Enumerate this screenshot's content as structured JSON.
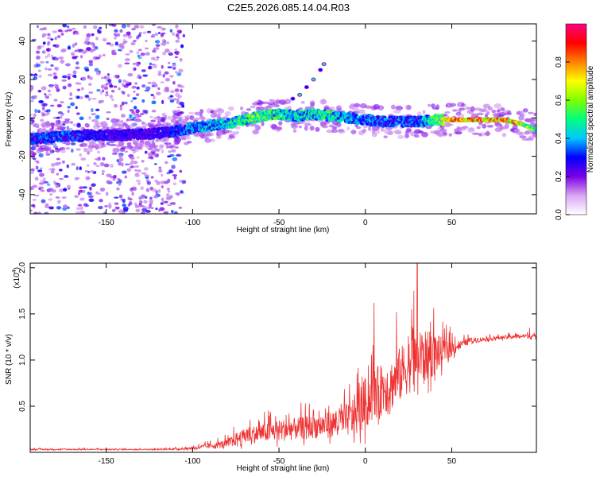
{
  "title": "C2E5.2026.085.14.04.R03",
  "chart_data": [
    {
      "type": "heatmap",
      "title": "C2E5.2026.085.14.04.R03",
      "xlabel": "Height of straight line (km)",
      "ylabel": "Frequency (Hz)",
      "xlim": [
        -194,
        99
      ],
      "ylim": [
        -50,
        49
      ],
      "x_ticks": [
        -150,
        -100,
        -50,
        0,
        50
      ],
      "x_tick_labels": [
        "-150",
        "-100",
        "-50",
        "0",
        "50"
      ],
      "y_ticks": [
        -40,
        -20,
        0,
        20,
        40
      ],
      "y_tick_labels": [
        "-40",
        "-20",
        "0",
        "20",
        "40"
      ],
      "ridge": {
        "x": [
          -194,
          -180,
          -160,
          -140,
          -120,
          -110,
          -100,
          -90,
          -80,
          -70,
          -60,
          -50,
          -40,
          -30,
          -20,
          -10,
          0,
          10,
          20,
          30,
          40,
          50,
          60,
          70,
          80,
          90,
          95,
          99
        ],
        "freq": [
          -11,
          -10,
          -9,
          -9,
          -8,
          -7,
          -5,
          -4,
          -3,
          -1,
          1,
          2,
          1,
          2,
          1,
          0,
          -1,
          -2,
          -2,
          -2,
          -1,
          -1,
          -1,
          -1,
          -1,
          -3,
          -5,
          -6
        ],
        "amplitude": [
          0.35,
          0.4,
          0.35,
          0.3,
          0.3,
          0.35,
          0.45,
          0.45,
          0.5,
          0.6,
          0.65,
          0.55,
          0.5,
          0.55,
          0.55,
          0.45,
          0.4,
          0.4,
          0.4,
          0.4,
          0.6,
          0.95,
          0.95,
          0.95,
          0.95,
          0.85,
          0.7,
          0.6
        ]
      },
      "spur": {
        "x": [
          -42,
          -38,
          -34,
          -30,
          -26,
          -24
        ],
        "freq": [
          10,
          12,
          16,
          20,
          25,
          28
        ]
      },
      "colorbar": {
        "label": "Normalized spectral amplitude",
        "ticks": [
          0.0,
          0.2,
          0.4,
          0.6,
          0.8
        ],
        "tick_labels": [
          "0.0",
          "0.2",
          "0.4",
          "0.6",
          "0.8"
        ],
        "range": [
          0,
          1
        ],
        "colors": [
          "#ffffff",
          "#d9a6f2",
          "#7b00e6",
          "#0000ff",
          "#00c8ff",
          "#00ff80",
          "#80ff00",
          "#ffff00",
          "#ff8000",
          "#ff0000",
          "#ff0080"
        ]
      }
    },
    {
      "type": "line",
      "xlabel": "Height of straight line (km)",
      "ylabel": "SNR (10 * v/v)",
      "multiplier_label": "(x10",
      "multiplier_exp": "4",
      "multiplier_close": ")",
      "xlim": [
        -194,
        99
      ],
      "ylim": [
        0,
        20500
      ],
      "x_ticks": [
        -150,
        -100,
        -50,
        0,
        50
      ],
      "x_tick_labels": [
        "-150",
        "-100",
        "-50",
        "0",
        "50"
      ],
      "y_ticks": [
        5000,
        10000,
        15000,
        20000
      ],
      "y_tick_labels": [
        "0.5",
        "1.0",
        "1.5",
        "2.0"
      ],
      "color": "#ee3333",
      "envelope": {
        "x": [
          -194,
          -170,
          -140,
          -120,
          -105,
          -100,
          -90,
          -80,
          -75,
          -70,
          -60,
          -50,
          -40,
          -30,
          -20,
          -10,
          -5,
          0,
          5,
          10,
          15,
          20,
          25,
          30,
          35,
          40,
          45,
          50,
          55,
          60,
          70,
          80,
          90,
          99
        ],
        "base": [
          300,
          300,
          300,
          300,
          350,
          400,
          600,
          800,
          1200,
          1500,
          1800,
          2000,
          2200,
          2400,
          2600,
          3000,
          3500,
          4500,
          5500,
          6000,
          6500,
          7500,
          8500,
          9000,
          9500,
          10000,
          10500,
          11000,
          11500,
          12000,
          12200,
          12400,
          12500,
          12500
        ],
        "spread": [
          150,
          150,
          150,
          150,
          250,
          400,
          700,
          1200,
          1800,
          2000,
          2500,
          3000,
          3000,
          3200,
          3500,
          4500,
          6000,
          7000,
          7000,
          7000,
          7000,
          7500,
          7500,
          8000,
          7000,
          6000,
          3500,
          2500,
          1200,
          800,
          600,
          500,
          600,
          500
        ]
      },
      "peaks": [
        {
          "x": 30,
          "y": 20500
        },
        {
          "x": 5,
          "y": 16200
        },
        {
          "x": 28,
          "y": 17500
        },
        {
          "x": 18,
          "y": 15200
        },
        {
          "x": -30,
          "y": 4600
        },
        {
          "x": 95,
          "y": 13500
        }
      ]
    }
  ]
}
